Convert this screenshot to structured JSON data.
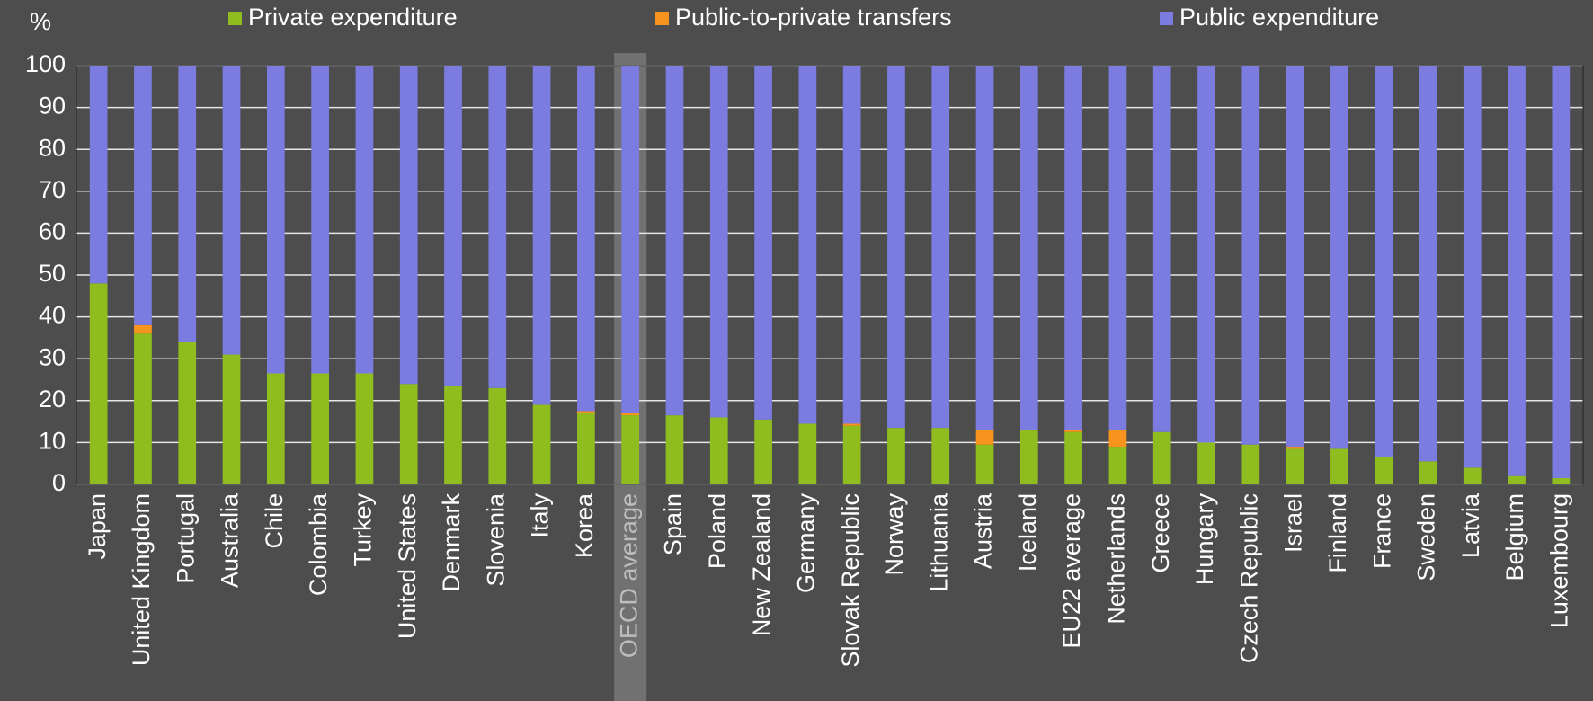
{
  "chart_data": {
    "type": "stacked_bar",
    "y_label": "%",
    "categories": [
      "Japan",
      "United Kingdom",
      "Portugal",
      "Australia",
      "Chile",
      "Colombia",
      "Turkey",
      "United States",
      "Denmark",
      "Slovenia",
      "Italy",
      "Korea",
      "OECD average",
      "Spain",
      "Poland",
      "New Zealand",
      "Germany",
      "Slovak Republic",
      "Norway",
      "Lithuania",
      "Austria",
      "Iceland",
      "EU22 average",
      "Netherlands",
      "Greece",
      "Hungary",
      "Czech Republic",
      "Israel",
      "Finland",
      "France",
      "Sweden",
      "Latvia",
      "Belgium",
      "Luxembourg"
    ],
    "series": [
      {
        "name": "Private expenditure",
        "color": "#8fbd1f",
        "values": [
          48,
          36,
          34,
          31,
          26.5,
          26.5,
          26.5,
          24,
          23.5,
          23,
          19,
          17,
          16.5,
          16.5,
          16,
          15.5,
          14.5,
          14,
          13.5,
          13.5,
          9.5,
          13,
          12.5,
          9,
          12.5,
          10,
          9.5,
          8.5,
          8.5,
          6.5,
          5.5,
          4,
          2,
          1.5
        ]
      },
      {
        "name": "Public-to-private transfers",
        "color": "#f7941d",
        "values": [
          0,
          2,
          0,
          0,
          0,
          0,
          0,
          0,
          0,
          0,
          0,
          0.5,
          0.5,
          0,
          0,
          0,
          0,
          0.5,
          0,
          0,
          3.5,
          0,
          0.5,
          4,
          0,
          0,
          0,
          0.5,
          0,
          0,
          0,
          0,
          0,
          0
        ]
      },
      {
        "name": "Public expenditure",
        "color": "#7b7be0",
        "values": [
          52,
          62,
          66,
          69,
          73.5,
          73.5,
          73.5,
          76,
          76.5,
          77,
          81,
          82.5,
          83,
          83.5,
          84,
          84.5,
          85.5,
          85.5,
          86.5,
          86.5,
          87,
          87,
          87,
          87,
          87.5,
          90,
          90.5,
          91,
          91.5,
          93.5,
          94.5,
          96,
          98,
          98.5
        ]
      }
    ],
    "highlight_category": "OECD average",
    "ylim": [
      0,
      100
    ],
    "yticks": [
      0,
      10,
      20,
      30,
      40,
      50,
      60,
      70,
      80,
      90,
      100
    ],
    "grid": true
  }
}
